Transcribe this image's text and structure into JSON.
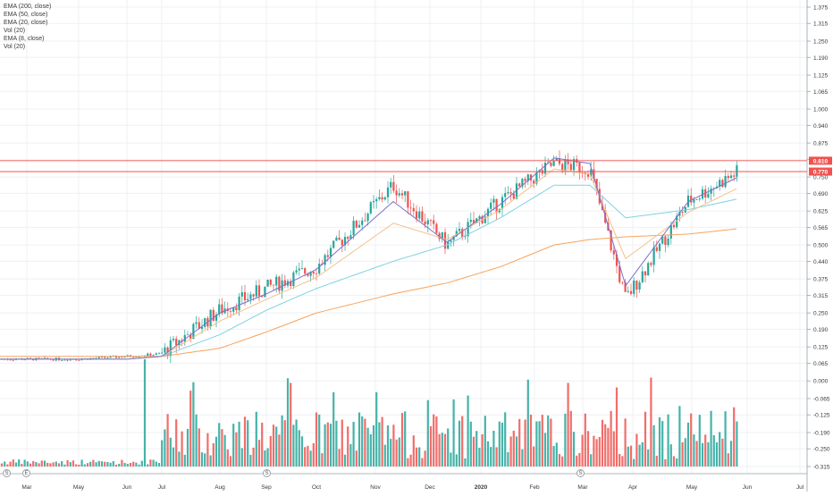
{
  "chart_data": {
    "type": "candlestick",
    "grid": true,
    "price_axis": {
      "side": "right",
      "ticks": [
        "1.375",
        "1.315",
        "1.250",
        "1.190",
        "1.125",
        "1.065",
        "1.000",
        "0.940",
        "0.875",
        "0.815",
        "0.750",
        "0.690",
        "0.625",
        "0.565",
        "0.500",
        "0.440",
        "0.375",
        "0.315",
        "0.250",
        "0.190",
        "0.125",
        "0.065",
        "0.000",
        "-0.065",
        "-0.125",
        "-0.190",
        "-0.250",
        "-0.315"
      ]
    },
    "time_axis": {
      "labels": [
        "Mar",
        "May",
        "Jun",
        "Jul",
        "Aug",
        "Sep",
        "Oct",
        "Nov",
        "Dec",
        "2020",
        "Feb",
        "Mar",
        "Apr",
        "May",
        "Jun",
        "Jul"
      ]
    },
    "indicators": [
      "EMA (200, close)",
      "EMA (50, close)",
      "EMA (20, close)",
      "Vol (20)",
      "EMA (8, close)",
      "Vol (20)"
    ],
    "horizontal_lines": [
      {
        "label": "0.810",
        "value": 0.81
      },
      {
        "label": "0.770",
        "value": 0.77
      }
    ],
    "colors": {
      "up": "#26a69a",
      "down": "#ef5350",
      "ema200": "#f7a35c",
      "ema50": "#7fd1e2",
      "ema20": "#f2c28a",
      "ema8": "#7b70c9",
      "hline": "#ef5350",
      "volume_up": "#26a69a",
      "volume_down": "#ef5350"
    },
    "price_path": [
      {
        "month": "Mar 2019",
        "close": 0.08
      },
      {
        "month": "May 2019",
        "close": 0.08
      },
      {
        "month": "Jun 2019",
        "close": 0.09
      },
      {
        "month": "Jul 2019",
        "close": 0.1
      },
      {
        "month": "Aug 2019",
        "close": 0.26
      },
      {
        "month": "Sep 2019",
        "close": 0.34
      },
      {
        "month": "Oct 2019",
        "close": 0.42
      },
      {
        "month": "Nov 2019",
        "close": 0.72
      },
      {
        "month": "Dec 2019",
        "close": 0.5
      },
      {
        "month": "Jan 2020",
        "close": 0.66
      },
      {
        "month": "Feb 2020",
        "close": 0.8
      },
      {
        "month": "Mar 2020",
        "close": 0.78
      },
      {
        "month": "Apr 2020",
        "close": 0.3
      },
      {
        "month": "May 2020",
        "close": 0.66
      },
      {
        "month": "Jun 2020",
        "close": 0.77
      }
    ],
    "ema_paths": {
      "ema200": [
        0.09,
        0.09,
        0.09,
        0.09,
        0.12,
        0.18,
        0.25,
        0.32,
        0.36,
        0.42,
        0.5,
        0.52,
        0.53,
        0.54,
        0.56
      ],
      "ema50": [
        0.08,
        0.08,
        0.08,
        0.09,
        0.17,
        0.26,
        0.34,
        0.44,
        0.5,
        0.6,
        0.72,
        0.72,
        0.6,
        0.63,
        0.67
      ],
      "ema20": [
        0.08,
        0.08,
        0.08,
        0.09,
        0.22,
        0.3,
        0.38,
        0.58,
        0.52,
        0.63,
        0.78,
        0.76,
        0.45,
        0.62,
        0.71
      ],
      "ema8": [
        0.08,
        0.08,
        0.08,
        0.09,
        0.25,
        0.32,
        0.41,
        0.66,
        0.51,
        0.65,
        0.82,
        0.8,
        0.35,
        0.66,
        0.75
      ]
    },
    "price_markers": [
      "S",
      "E",
      "S",
      "S"
    ]
  }
}
